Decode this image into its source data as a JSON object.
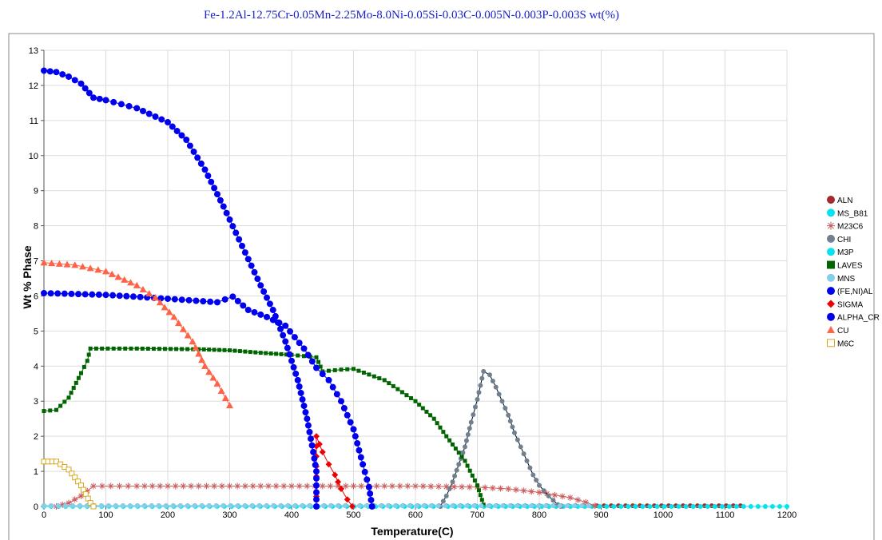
{
  "chart_data": {
    "type": "line",
    "title": "Fe-1.2Al-12.75Cr-0.05Mn-2.25Mo-8.0Ni-0.05Si-0.03C-0.005N-0.003P-0.003S wt(%)",
    "xlabel": "Temperature(C)",
    "ylabel": "Wt % Phase",
    "xlim": [
      0,
      1200
    ],
    "ylim": [
      0,
      13
    ],
    "x_ticks": [
      "0",
      "100",
      "200",
      "300",
      "400",
      "500",
      "600",
      "700",
      "800",
      "900",
      "1000",
      "1100",
      "1200"
    ],
    "y_ticks": [
      "0",
      "1",
      "2",
      "3",
      "4",
      "5",
      "6",
      "7",
      "8",
      "9",
      "10",
      "11",
      "12",
      "13"
    ],
    "grid": true,
    "legend_position": "right",
    "series": [
      {
        "name": "ALN",
        "color": "#a52a2a",
        "marker": "circle",
        "markerSize": 3,
        "points": [
          [
            0,
            0.02
          ],
          [
            1125,
            0.02
          ]
        ]
      },
      {
        "name": "MS_B81",
        "color": "#00e5ee",
        "marker": "circle",
        "markerSize": 3,
        "points": [
          [
            0,
            0.0
          ],
          [
            1200,
            0.0
          ]
        ]
      },
      {
        "name": "M23C6",
        "color": "#cd5c5c",
        "marker": "asterisk",
        "markerSize": 4,
        "points": [
          [
            20,
            0.0
          ],
          [
            40,
            0.1
          ],
          [
            60,
            0.3
          ],
          [
            80,
            0.58
          ],
          [
            150,
            0.58
          ],
          [
            300,
            0.58
          ],
          [
            450,
            0.58
          ],
          [
            600,
            0.58
          ],
          [
            700,
            0.55
          ],
          [
            750,
            0.5
          ],
          [
            800,
            0.4
          ],
          [
            850,
            0.25
          ],
          [
            875,
            0.12
          ],
          [
            890,
            0.02
          ]
        ]
      },
      {
        "name": "CHI",
        "color": "#708090",
        "marker": "circle",
        "markerSize": 3,
        "points": [
          [
            640,
            0.0
          ],
          [
            650,
            0.3
          ],
          [
            660,
            0.7
          ],
          [
            670,
            1.2
          ],
          [
            680,
            1.7
          ],
          [
            690,
            2.4
          ],
          [
            700,
            3.05
          ],
          [
            710,
            3.85
          ],
          [
            720,
            3.75
          ],
          [
            730,
            3.4
          ],
          [
            740,
            3.0
          ],
          [
            750,
            2.6
          ],
          [
            760,
            2.1
          ],
          [
            770,
            1.7
          ],
          [
            780,
            1.3
          ],
          [
            790,
            0.9
          ],
          [
            800,
            0.6
          ],
          [
            815,
            0.3
          ],
          [
            830,
            0.05
          ],
          [
            835,
            0.0
          ]
        ]
      },
      {
        "name": "M3P",
        "color": "#00e5ee",
        "marker": "circle",
        "markerSize": 3,
        "points": []
      },
      {
        "name": "LAVES",
        "color": "#006400",
        "marker": "square",
        "markerSize": 2.5,
        "points": [
          [
            0,
            2.72
          ],
          [
            20,
            2.75
          ],
          [
            40,
            3.1
          ],
          [
            60,
            3.8
          ],
          [
            70,
            4.15
          ],
          [
            75,
            4.5
          ],
          [
            150,
            4.5
          ],
          [
            250,
            4.48
          ],
          [
            300,
            4.45
          ],
          [
            350,
            4.38
          ],
          [
            400,
            4.32
          ],
          [
            440,
            4.25
          ],
          [
            450,
            3.85
          ],
          [
            480,
            3.9
          ],
          [
            500,
            3.92
          ],
          [
            550,
            3.6
          ],
          [
            600,
            3.0
          ],
          [
            630,
            2.5
          ],
          [
            650,
            2.0
          ],
          [
            680,
            1.3
          ],
          [
            700,
            0.6
          ],
          [
            710,
            0.05
          ]
        ]
      },
      {
        "name": "MNS",
        "color": "#87ceeb",
        "marker": "circle",
        "markerSize": 3,
        "points": [
          [
            0,
            0.02
          ],
          [
            880,
            0.02
          ]
        ]
      },
      {
        "name": "(FE,NI)AL",
        "color": "#0000ee",
        "marker": "circle",
        "markerSize": 4,
        "points": [
          [
            0,
            6.08
          ],
          [
            100,
            6.03
          ],
          [
            200,
            5.92
          ],
          [
            280,
            5.82
          ],
          [
            305,
            5.98
          ],
          [
            330,
            5.6
          ],
          [
            360,
            5.4
          ],
          [
            390,
            5.15
          ],
          [
            420,
            4.5
          ],
          [
            440,
            3.95
          ],
          [
            460,
            3.6
          ],
          [
            480,
            3.0
          ],
          [
            500,
            2.2
          ],
          [
            515,
            1.2
          ],
          [
            525,
            0.55
          ],
          [
            530,
            0.0
          ]
        ]
      },
      {
        "name": "SIGMA",
        "color": "#ee0000",
        "marker": "diamond",
        "markerSize": 4,
        "points": [
          [
            440,
            0.0
          ],
          [
            440,
            2.0
          ],
          [
            450,
            1.55
          ],
          [
            460,
            1.2
          ],
          [
            470,
            0.9
          ],
          [
            480,
            0.5
          ],
          [
            490,
            0.2
          ],
          [
            498,
            0.0
          ]
        ]
      },
      {
        "name": "ALPHA_CR",
        "color": "#0000ee",
        "marker": "circle",
        "markerSize": 4,
        "points": [
          [
            0,
            12.42
          ],
          [
            20,
            12.38
          ],
          [
            40,
            12.25
          ],
          [
            60,
            12.05
          ],
          [
            80,
            11.65
          ],
          [
            100,
            11.58
          ],
          [
            150,
            11.35
          ],
          [
            200,
            10.95
          ],
          [
            230,
            10.45
          ],
          [
            260,
            9.6
          ],
          [
            290,
            8.55
          ],
          [
            310,
            7.8
          ],
          [
            330,
            7.05
          ],
          [
            350,
            6.3
          ],
          [
            370,
            5.6
          ],
          [
            390,
            4.7
          ],
          [
            410,
            3.6
          ],
          [
            425,
            2.5
          ],
          [
            435,
            1.55
          ],
          [
            440,
            1.0
          ],
          [
            440,
            0.0
          ]
        ]
      },
      {
        "name": "CU",
        "color": "#ff6347",
        "marker": "triangle",
        "markerSize": 4.5,
        "points": [
          [
            0,
            6.95
          ],
          [
            50,
            6.88
          ],
          [
            100,
            6.7
          ],
          [
            150,
            6.3
          ],
          [
            180,
            5.95
          ],
          [
            210,
            5.4
          ],
          [
            240,
            4.7
          ],
          [
            260,
            4.0
          ],
          [
            280,
            3.5
          ],
          [
            300,
            2.88
          ]
        ]
      },
      {
        "name": "M6C",
        "color": "#daa520",
        "marker": "hsquare",
        "markerSize": 3,
        "points": [
          [
            0,
            1.28
          ],
          [
            20,
            1.28
          ],
          [
            40,
            1.05
          ],
          [
            60,
            0.6
          ],
          [
            75,
            0.1
          ],
          [
            80,
            0.0
          ]
        ]
      }
    ]
  }
}
